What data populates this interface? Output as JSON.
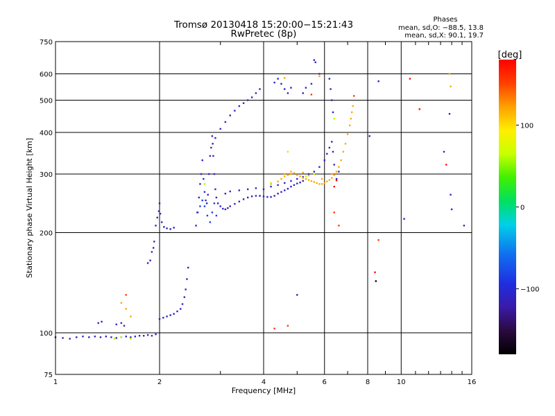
{
  "chart_data": {
    "type": "scatter",
    "title": "Tromsø 20130418 15:20:00−15:21:43",
    "subtitle": "RwPretec (8p)",
    "xlabel": "Frequency [MHz]",
    "ylabel": "Stationary phase Virtual Height [km]",
    "x_scale": "log",
    "y_scale": "log",
    "xlim": [
      1,
      16
    ],
    "ylim": [
      75,
      750
    ],
    "x_ticks": [
      1,
      2,
      4,
      6,
      8,
      10,
      16
    ],
    "x_tick_labels": [
      "1",
      "2",
      "4",
      "6",
      "8",
      "10",
      "16"
    ],
    "x_minor_ticks": [
      3,
      5,
      7,
      9,
      11,
      12,
      13,
      14,
      15
    ],
    "y_ticks": [
      75,
      100,
      200,
      300,
      400,
      500,
      600,
      750
    ],
    "y_tick_labels": [
      "75",
      "100",
      "200",
      "300",
      "400",
      "500",
      "600",
      "750"
    ],
    "grid": true,
    "phases": {
      "title": "Phases",
      "line_o": "mean, sd,O: −88.5, 13.8",
      "line_x": "mean, sd,X:  90.1, 19.7"
    },
    "colorbar": {
      "label": "[deg]",
      "ticks": [
        100,
        0,
        -100
      ],
      "tick_labels": [
        "100",
        "0",
        "−100"
      ],
      "range": [
        -180,
        180
      ]
    },
    "series": [
      {
        "phase_deg": -110,
        "points": [
          [
            1.0,
            97
          ],
          [
            1.05,
            96.5
          ],
          [
            1.1,
            96
          ],
          [
            1.15,
            97
          ],
          [
            1.2,
            97.5
          ],
          [
            1.25,
            97
          ],
          [
            1.3,
            97.5
          ],
          [
            1.35,
            97
          ],
          [
            1.4,
            97.5
          ],
          [
            1.45,
            97
          ],
          [
            1.5,
            96.5
          ],
          [
            1.55,
            97
          ],
          [
            1.6,
            97.5
          ],
          [
            1.65,
            97
          ],
          [
            1.7,
            97.5
          ],
          [
            1.75,
            98
          ],
          [
            1.8,
            98
          ],
          [
            1.85,
            98.5
          ],
          [
            1.9,
            98
          ],
          [
            1.95,
            99
          ],
          [
            1.33,
            107
          ],
          [
            1.36,
            108
          ],
          [
            1.5,
            106
          ],
          [
            1.55,
            107
          ],
          [
            1.58,
            105
          ],
          [
            1.85,
            162
          ],
          [
            1.88,
            165
          ],
          [
            1.9,
            175
          ],
          [
            1.92,
            180
          ],
          [
            1.93,
            188
          ],
          [
            1.95,
            210
          ],
          [
            1.97,
            222
          ],
          [
            1.99,
            232
          ],
          [
            2.0,
            245
          ],
          [
            2.01,
            228
          ],
          [
            2.03,
            215
          ],
          [
            2.06,
            208
          ],
          [
            2.1,
            206
          ],
          [
            2.15,
            205
          ],
          [
            2.2,
            207
          ],
          [
            2.0,
            110
          ],
          [
            2.05,
            111
          ],
          [
            2.1,
            112
          ],
          [
            2.15,
            113
          ],
          [
            2.2,
            114
          ],
          [
            2.25,
            116
          ],
          [
            2.3,
            118
          ],
          [
            2.33,
            122
          ],
          [
            2.36,
            128
          ],
          [
            2.38,
            135
          ],
          [
            2.4,
            145
          ],
          [
            2.42,
            157
          ],
          [
            2.55,
            210
          ],
          [
            2.57,
            230
          ],
          [
            2.6,
            255
          ],
          [
            2.62,
            280
          ],
          [
            2.64,
            300
          ],
          [
            2.66,
            330
          ],
          [
            2.68,
            290
          ],
          [
            2.7,
            265
          ],
          [
            2.72,
            250
          ],
          [
            2.74,
            245
          ],
          [
            2.76,
            260
          ],
          [
            2.78,
            300
          ],
          [
            2.8,
            340
          ],
          [
            2.82,
            360
          ],
          [
            2.84,
            390
          ],
          [
            2.86,
            340
          ],
          [
            2.88,
            300
          ],
          [
            2.9,
            270
          ],
          [
            2.92,
            255
          ],
          [
            2.95,
            245
          ],
          [
            3.0,
            240
          ],
          [
            3.05,
            236
          ],
          [
            3.1,
            235
          ],
          [
            3.15,
            237
          ],
          [
            3.2,
            240
          ],
          [
            3.3,
            244
          ],
          [
            3.4,
            248
          ],
          [
            3.5,
            252
          ],
          [
            3.6,
            255
          ],
          [
            3.7,
            257
          ],
          [
            3.8,
            258
          ],
          [
            3.9,
            258
          ],
          [
            4.0,
            257
          ],
          [
            4.1,
            256
          ],
          [
            4.2,
            256
          ],
          [
            4.3,
            258
          ],
          [
            4.4,
            262
          ],
          [
            4.5,
            265
          ],
          [
            4.6,
            268
          ],
          [
            4.7,
            271
          ],
          [
            4.8,
            275
          ],
          [
            4.9,
            278
          ],
          [
            5.0,
            281
          ],
          [
            5.1,
            283
          ],
          [
            5.2,
            286
          ],
          [
            3.1,
            262
          ],
          [
            3.2,
            266
          ],
          [
            3.4,
            268
          ],
          [
            3.6,
            270
          ],
          [
            3.8,
            272
          ],
          [
            4.0,
            270
          ],
          [
            4.2,
            275
          ],
          [
            4.4,
            278
          ],
          [
            4.6,
            282
          ],
          [
            4.8,
            286
          ],
          [
            5.0,
            290
          ],
          [
            5.2,
            294
          ],
          [
            5.4,
            300
          ],
          [
            5.6,
            305
          ],
          [
            5.8,
            315
          ],
          [
            6.0,
            330
          ],
          [
            6.1,
            345
          ],
          [
            6.2,
            360
          ],
          [
            6.3,
            375
          ],
          [
            6.35,
            350
          ],
          [
            6.4,
            320
          ],
          [
            2.85,
            370
          ],
          [
            2.9,
            385
          ],
          [
            3.0,
            410
          ],
          [
            3.1,
            430
          ],
          [
            3.2,
            450
          ],
          [
            3.3,
            465
          ],
          [
            3.4,
            480
          ],
          [
            3.5,
            490
          ],
          [
            3.6,
            500
          ],
          [
            3.7,
            510
          ],
          [
            3.8,
            525
          ],
          [
            3.9,
            540
          ],
          [
            4.3,
            565
          ],
          [
            4.4,
            580
          ],
          [
            4.5,
            560
          ],
          [
            4.6,
            540
          ],
          [
            4.7,
            525
          ],
          [
            4.8,
            545
          ],
          [
            5.2,
            525
          ],
          [
            5.3,
            545
          ],
          [
            5.5,
            560
          ],
          [
            5.6,
            660
          ],
          [
            5.65,
            650
          ],
          [
            5.8,
            600
          ],
          [
            6.2,
            580
          ],
          [
            6.25,
            540
          ],
          [
            6.3,
            500
          ],
          [
            6.35,
            460
          ],
          [
            6.5,
            290
          ],
          [
            6.6,
            305
          ],
          [
            8.1,
            390
          ],
          [
            8.6,
            570
          ],
          [
            10.2,
            220
          ],
          [
            13.3,
            350
          ],
          [
            13.8,
            455
          ],
          [
            13.9,
            260
          ],
          [
            14.0,
            235
          ],
          [
            15.2,
            210
          ],
          [
            5.0,
            130
          ]
        ]
      },
      {
        "phase_deg": -85,
        "points": [
          [
            2.58,
            230
          ],
          [
            2.62,
            240
          ],
          [
            2.66,
            250
          ],
          [
            2.7,
            240
          ],
          [
            2.75,
            225
          ],
          [
            2.8,
            215
          ],
          [
            2.84,
            230
          ],
          [
            2.88,
            245
          ],
          [
            2.92,
            225
          ]
        ]
      },
      {
        "phase_deg": 120,
        "points": [
          [
            4.5,
            290
          ],
          [
            4.6,
            295
          ],
          [
            4.7,
            298
          ],
          [
            4.8,
            300
          ],
          [
            4.9,
            302
          ],
          [
            5.0,
            298
          ],
          [
            5.1,
            295
          ],
          [
            5.2,
            292
          ],
          [
            5.3,
            290
          ],
          [
            5.4,
            288
          ],
          [
            5.5,
            286
          ],
          [
            5.6,
            284
          ],
          [
            5.7,
            282
          ],
          [
            5.8,
            280
          ],
          [
            5.9,
            280
          ],
          [
            6.0,
            282
          ],
          [
            6.1,
            285
          ],
          [
            6.2,
            288
          ],
          [
            6.3,
            292
          ],
          [
            6.4,
            298
          ],
          [
            6.5,
            305
          ],
          [
            6.6,
            315
          ],
          [
            6.7,
            330
          ],
          [
            6.8,
            350
          ],
          [
            6.9,
            370
          ],
          [
            7.0,
            395
          ],
          [
            7.1,
            420
          ],
          [
            7.15,
            440
          ],
          [
            7.2,
            460
          ],
          [
            7.25,
            480
          ],
          [
            4.2,
            280
          ],
          [
            4.4,
            285
          ],
          [
            4.6,
            300
          ],
          [
            4.8,
            305
          ],
          [
            5.2,
            303
          ],
          [
            5.4,
            297
          ],
          [
            5.9,
            290
          ],
          [
            6.3,
            300
          ],
          [
            1.55,
            123
          ],
          [
            1.6,
            118
          ],
          [
            1.65,
            112
          ],
          [
            13.8,
            600
          ],
          [
            4.6,
            583
          ],
          [
            5.8,
            590
          ],
          [
            13.9,
            550
          ]
        ]
      },
      {
        "phase_deg": 60,
        "points": [
          [
            1.48,
            96
          ],
          [
            1.55,
            97
          ],
          [
            1.65,
            96
          ],
          [
            4.2,
            282
          ],
          [
            4.7,
            350
          ],
          [
            5.3,
            295
          ],
          [
            5.6,
            300
          ],
          [
            6.4,
            440
          ],
          [
            2.7,
            280
          ]
        ]
      },
      {
        "phase_deg": 155,
        "points": [
          [
            4.3,
            103
          ],
          [
            6.4,
            230
          ],
          [
            6.6,
            210
          ],
          [
            7.3,
            515
          ],
          [
            8.6,
            190
          ],
          [
            1.6,
            130
          ],
          [
            4.7,
            105
          ],
          [
            5.5,
            520
          ]
        ]
      },
      {
        "phase_deg": 175,
        "points": [
          [
            6.4,
            275
          ],
          [
            6.5,
            287
          ],
          [
            8.4,
            152
          ],
          [
            10.6,
            580
          ],
          [
            11.3,
            470
          ],
          [
            13.5,
            320
          ]
        ]
      },
      {
        "phase_deg": -178,
        "points": [
          [
            8.45,
            143
          ]
        ]
      }
    ]
  }
}
